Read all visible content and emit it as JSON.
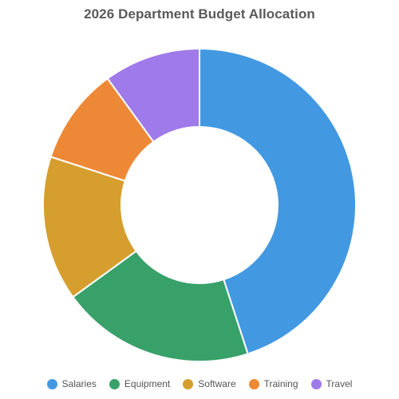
{
  "chart_data": {
    "type": "pie",
    "variant": "donut",
    "title": "2026 Department Budget Allocation",
    "categories": [
      "Salaries",
      "Equipment",
      "Software",
      "Training",
      "Travel"
    ],
    "values": [
      45,
      20,
      15,
      10,
      10
    ],
    "unit": "%",
    "colors": [
      "#4299e1",
      "#38a169",
      "#d69e2e",
      "#ed8936",
      "#9f7aea"
    ],
    "legend_position": "bottom",
    "slice_border_color": "#ffffff"
  }
}
